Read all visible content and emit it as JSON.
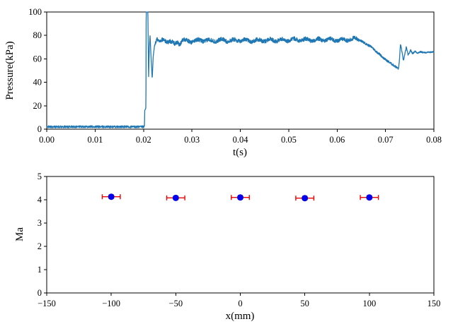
{
  "figure": {
    "background": "#ffffff",
    "border_color": "#000000",
    "tick_color": "#000000"
  },
  "chart_data": [
    {
      "type": "line",
      "title": "",
      "xlabel": "t(s)",
      "ylabel": "Pressure(kPa)",
      "xlim": [
        0,
        0.08
      ],
      "ylim": [
        0,
        100
      ],
      "xticks": [
        0,
        0.01,
        0.02,
        0.03,
        0.04,
        0.05,
        0.06,
        0.07,
        0.08
      ],
      "xtick_labels": [
        "0.00",
        "0.01",
        "0.02",
        "0.03",
        "0.04",
        "0.05",
        "0.06",
        "0.07",
        "0.08"
      ],
      "yticks": [
        0,
        20,
        40,
        60,
        80,
        100
      ],
      "ytick_labels": [
        "0",
        "20",
        "40",
        "60",
        "80",
        "100"
      ],
      "grid": false,
      "legend": null,
      "line_color": "#1f77b4",
      "line_width": 1.3,
      "samples": 2200,
      "keypoints": [
        [
          0,
          2
        ],
        [
          0.004,
          2
        ],
        [
          0.008,
          2.2
        ],
        [
          0.012,
          2
        ],
        [
          0.016,
          2
        ],
        [
          0.02,
          2
        ],
        [
          0.0202,
          2.5
        ],
        [
          0.02025,
          16
        ],
        [
          0.0205,
          18
        ],
        [
          0.02055,
          100
        ],
        [
          0.0209,
          100
        ],
        [
          0.02105,
          44
        ],
        [
          0.0212,
          70
        ],
        [
          0.02135,
          80
        ],
        [
          0.0216,
          58
        ],
        [
          0.0218,
          43
        ],
        [
          0.022,
          62
        ],
        [
          0.0223,
          72
        ],
        [
          0.0228,
          77
        ],
        [
          0.0233,
          74
        ],
        [
          0.024,
          76
        ],
        [
          0.0255,
          75
        ],
        [
          0.0265,
          72
        ],
        [
          0.027,
          75
        ],
        [
          0.0275,
          72.5
        ],
        [
          0.028,
          76
        ],
        [
          0.03,
          75
        ],
        [
          0.032,
          76
        ],
        [
          0.034,
          75.5
        ],
        [
          0.036,
          76
        ],
        [
          0.038,
          75.5
        ],
        [
          0.04,
          76
        ],
        [
          0.043,
          75.5
        ],
        [
          0.046,
          76
        ],
        [
          0.049,
          76
        ],
        [
          0.052,
          76.5
        ],
        [
          0.055,
          76
        ],
        [
          0.058,
          76.5
        ],
        [
          0.061,
          76
        ],
        [
          0.0635,
          77
        ],
        [
          0.0645,
          76.5
        ],
        [
          0.0655,
          74
        ],
        [
          0.0665,
          71.5
        ],
        [
          0.0672,
          70
        ],
        [
          0.068,
          66.5
        ],
        [
          0.0688,
          64
        ],
        [
          0.0695,
          61
        ],
        [
          0.0703,
          58.5
        ],
        [
          0.071,
          56.5
        ],
        [
          0.0715,
          55
        ],
        [
          0.0722,
          53
        ],
        [
          0.0727,
          51.5
        ],
        [
          0.0729,
          60
        ],
        [
          0.0731,
          73
        ],
        [
          0.0734,
          66
        ],
        [
          0.0737,
          58.5
        ],
        [
          0.074,
          64
        ],
        [
          0.0743,
          70
        ],
        [
          0.0747,
          63
        ],
        [
          0.0752,
          67.5
        ],
        [
          0.0756,
          64.5
        ],
        [
          0.0761,
          66.5
        ],
        [
          0.0766,
          65
        ],
        [
          0.0772,
          66
        ],
        [
          0.078,
          65.3
        ],
        [
          0.08,
          66
        ]
      ],
      "noise_segments": [
        [
          0,
          0.0202,
          0.9
        ],
        [
          0.0223,
          0.0645,
          1.7
        ],
        [
          0.0645,
          0.0727,
          0.9
        ],
        [
          0.0727,
          0.08,
          0.6
        ]
      ],
      "ripple": {
        "t0": 0.023,
        "t1": 0.0645,
        "period": 0.0025,
        "amp": 1.0
      }
    },
    {
      "type": "scatter",
      "title": "",
      "xlabel": "x(mm)",
      "ylabel": "Ma",
      "xlim": [
        -150,
        150
      ],
      "ylim": [
        0,
        5
      ],
      "xticks": [
        -150,
        -100,
        -50,
        0,
        50,
        100,
        150
      ],
      "xtick_labels": [
        "−150",
        "−100",
        "−50",
        "0",
        "50",
        "100",
        "150"
      ],
      "yticks": [
        0,
        1,
        2,
        3,
        4,
        5
      ],
      "ytick_labels": [
        "0",
        "1",
        "2",
        "3",
        "4",
        "5"
      ],
      "grid": false,
      "legend": null,
      "x": [
        -100,
        -50,
        0,
        50,
        100
      ],
      "y": [
        4.13,
        4.08,
        4.1,
        4.07,
        4.1
      ],
      "xerr": 7,
      "yerr": 0.08,
      "marker_color": "#0000ee",
      "error_color": "#ee0000",
      "marker_radius": 4.5,
      "cap_half_length": 3.5
    }
  ]
}
